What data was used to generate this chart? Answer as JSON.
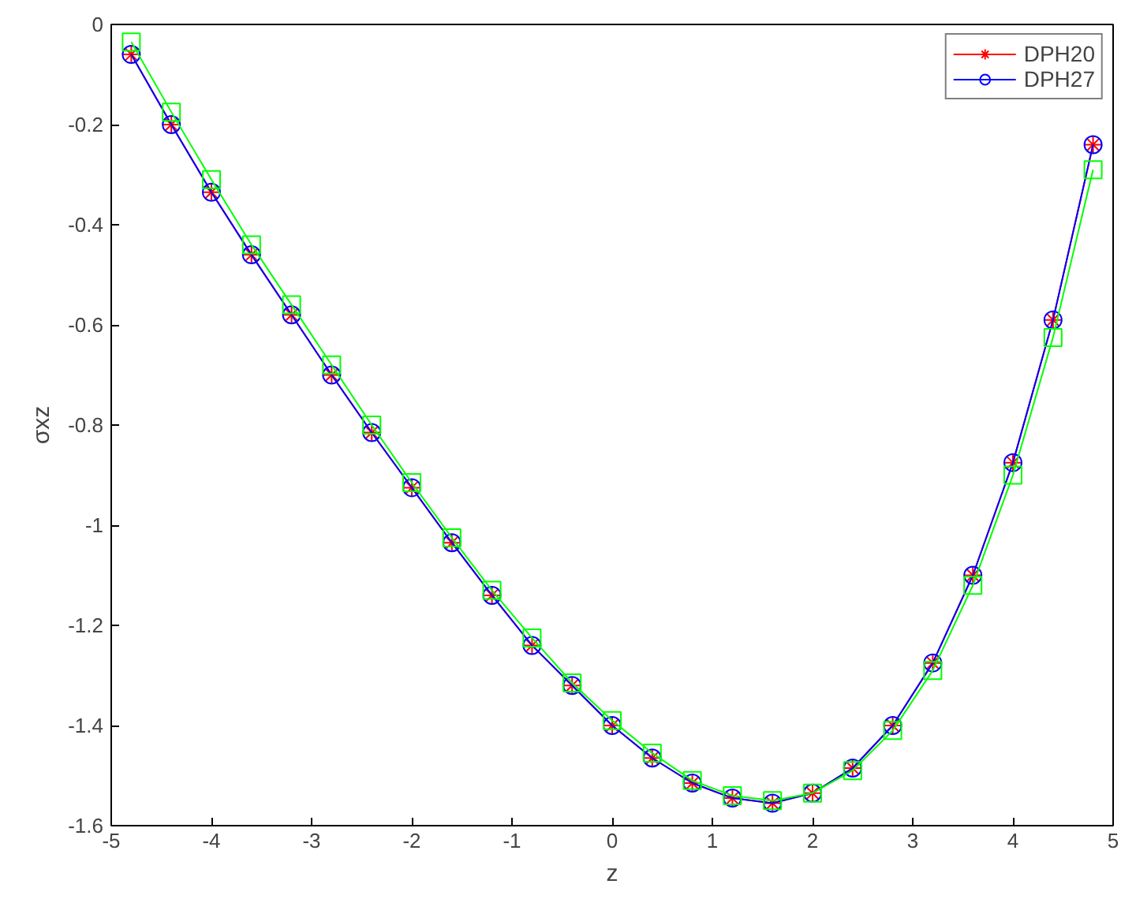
{
  "chart_data": {
    "type": "line",
    "xlabel": "z",
    "ylabel": "σxz",
    "x": [
      -4.8,
      -4.4,
      -4.0,
      -3.6,
      -3.2,
      -2.8,
      -2.4,
      -2.0,
      -1.6,
      -1.2,
      -0.8,
      -0.4,
      0,
      0.4,
      0.8,
      1.2,
      1.6,
      2.0,
      2.4,
      2.8,
      3.2,
      3.6,
      4.0,
      4.4,
      4.8
    ],
    "series": [
      {
        "name": "DPH20",
        "color": "#ff0000",
        "marker": "cross",
        "values": [
          -0.06,
          -0.2,
          -0.335,
          -0.46,
          -0.58,
          -0.7,
          -0.815,
          -0.925,
          -1.035,
          -1.14,
          -1.24,
          -1.32,
          -1.4,
          -1.465,
          -1.515,
          -1.545,
          -1.555,
          -1.535,
          -1.485,
          -1.4,
          -1.275,
          -1.1,
          -0.875,
          -0.59,
          -0.24
        ]
      },
      {
        "name": "DPH27",
        "color": "#0000ff",
        "marker": "circle",
        "values": [
          -0.06,
          -0.2,
          -0.335,
          -0.46,
          -0.58,
          -0.7,
          -0.815,
          -0.925,
          -1.035,
          -1.14,
          -1.24,
          -1.32,
          -1.4,
          -1.465,
          -1.515,
          -1.545,
          -1.555,
          -1.535,
          -1.485,
          -1.4,
          -1.275,
          -1.1,
          -0.875,
          -0.59,
          -0.24
        ]
      },
      {
        "color": "#00ff00",
        "marker": "square",
        "values": [
          -0.035,
          -0.175,
          -0.31,
          -0.44,
          -0.56,
          -0.68,
          -0.8,
          -0.915,
          -1.025,
          -1.13,
          -1.225,
          -1.315,
          -1.39,
          -1.455,
          -1.51,
          -1.54,
          -1.55,
          -1.535,
          -1.49,
          -1.41,
          -1.29,
          -1.12,
          -0.9,
          -0.625,
          -0.29
        ]
      }
    ],
    "xlim": [
      -5,
      5
    ],
    "ylim": [
      -1.6,
      0
    ],
    "xticks": [
      -5,
      -4,
      -3,
      -2,
      -1,
      0,
      1,
      2,
      3,
      4,
      5
    ],
    "yticks": [
      -1.6,
      -1.4,
      -1.2,
      -1,
      -0.8,
      -0.6,
      -0.4,
      -0.2,
      0
    ],
    "grid": false,
    "legend": "top right",
    "line_style": "solid"
  }
}
